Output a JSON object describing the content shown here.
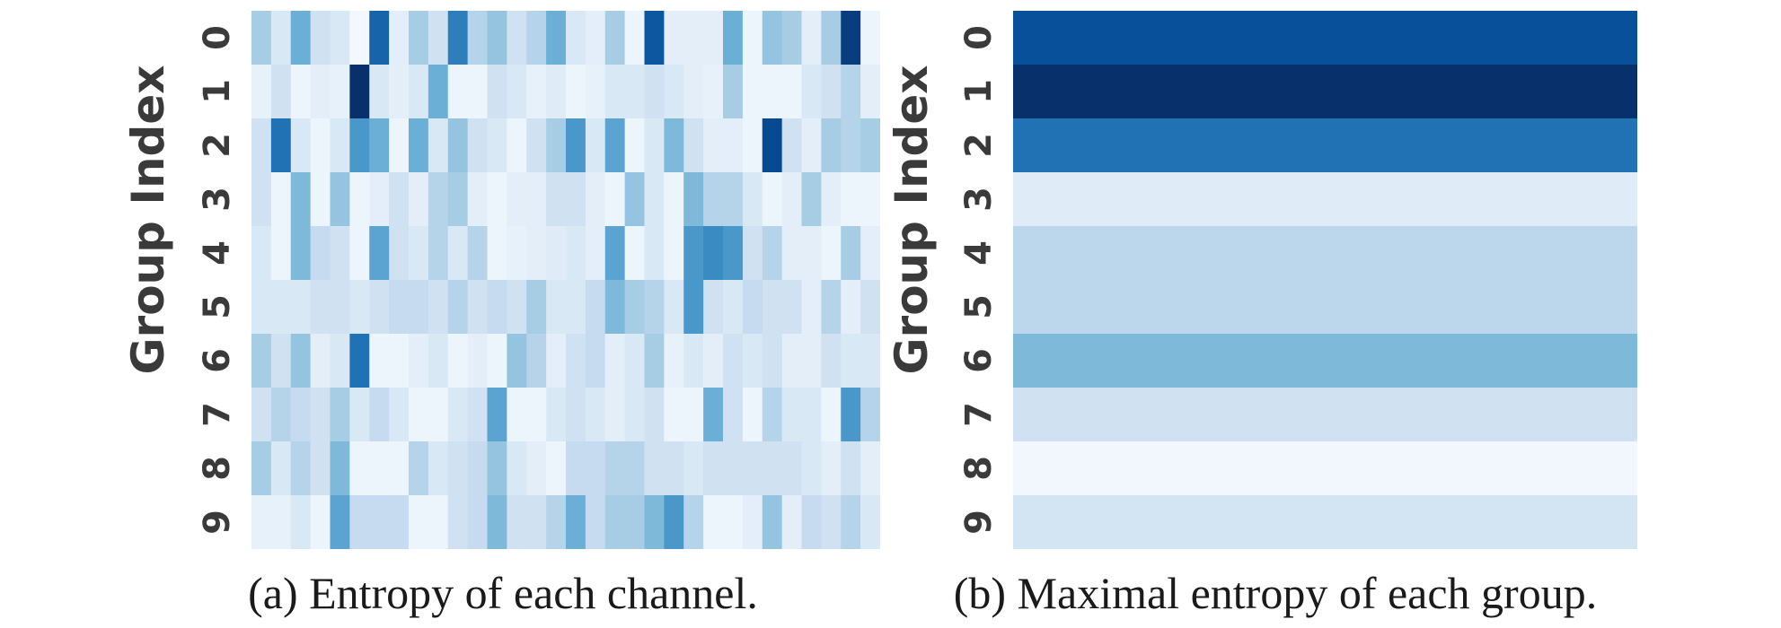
{
  "chart_data": [
    {
      "type": "heatmap",
      "ylabel": "Group Index",
      "rows": [
        "0",
        "1",
        "2",
        "3",
        "4",
        "5",
        "6",
        "7",
        "8",
        "9"
      ],
      "n_cols": 32,
      "colormap": "Blues",
      "values": [
        [
          0.35,
          0.15,
          0.5,
          0.2,
          0.15,
          0.02,
          0.8,
          0.1,
          0.35,
          0.2,
          0.7,
          0.3,
          0.4,
          0.2,
          0.3,
          0.5,
          0.15,
          0.1,
          0.35,
          0.05,
          0.85,
          0.1,
          0.1,
          0.1,
          0.5,
          0.05,
          0.4,
          0.35,
          0.1,
          0.35,
          0.95,
          0.05
        ],
        [
          0.08,
          0.2,
          0.05,
          0.1,
          0.08,
          1.0,
          0.15,
          0.1,
          0.15,
          0.5,
          0.05,
          0.05,
          0.2,
          0.15,
          0.08,
          0.12,
          0.05,
          0.08,
          0.15,
          0.15,
          0.2,
          0.15,
          0.1,
          0.08,
          0.35,
          0.05,
          0.05,
          0.05,
          0.15,
          0.2,
          0.3,
          0.1
        ],
        [
          0.2,
          0.75,
          0.15,
          0.05,
          0.15,
          0.6,
          0.5,
          0.05,
          0.5,
          0.15,
          0.4,
          0.2,
          0.15,
          0.05,
          0.2,
          0.35,
          0.6,
          0.15,
          0.55,
          0.05,
          0.15,
          0.45,
          0.2,
          0.1,
          0.1,
          0.05,
          0.9,
          0.2,
          0.1,
          0.35,
          0.3,
          0.35
        ],
        [
          0.2,
          0.05,
          0.45,
          0.05,
          0.4,
          0.05,
          0.1,
          0.2,
          0.1,
          0.3,
          0.35,
          0.1,
          0.05,
          0.1,
          0.1,
          0.2,
          0.2,
          0.1,
          0.05,
          0.4,
          0.15,
          0.05,
          0.45,
          0.3,
          0.3,
          0.15,
          0.05,
          0.1,
          0.35,
          0.1,
          0.05,
          0.05
        ],
        [
          0.15,
          0.05,
          0.45,
          0.25,
          0.2,
          0.05,
          0.55,
          0.2,
          0.15,
          0.3,
          0.15,
          0.3,
          0.05,
          0.08,
          0.1,
          0.12,
          0.15,
          0.1,
          0.55,
          0.05,
          0.15,
          0.05,
          0.6,
          0.65,
          0.6,
          0.2,
          0.3,
          0.1,
          0.1,
          0.05,
          0.35,
          0.1
        ],
        [
          0.15,
          0.15,
          0.15,
          0.2,
          0.2,
          0.15,
          0.2,
          0.25,
          0.25,
          0.2,
          0.3,
          0.2,
          0.25,
          0.2,
          0.35,
          0.15,
          0.15,
          0.25,
          0.45,
          0.35,
          0.3,
          0.15,
          0.6,
          0.2,
          0.15,
          0.25,
          0.2,
          0.2,
          0.1,
          0.3,
          0.1,
          0.2
        ],
        [
          0.35,
          0.2,
          0.4,
          0.1,
          0.15,
          0.75,
          0.05,
          0.05,
          0.1,
          0.15,
          0.05,
          0.1,
          0.05,
          0.4,
          0.3,
          0.1,
          0.2,
          0.25,
          0.1,
          0.15,
          0.35,
          0.08,
          0.15,
          0.1,
          0.2,
          0.15,
          0.2,
          0.1,
          0.1,
          0.2,
          0.15,
          0.15
        ],
        [
          0.2,
          0.3,
          0.25,
          0.2,
          0.35,
          0.15,
          0.25,
          0.15,
          0.05,
          0.05,
          0.15,
          0.2,
          0.55,
          0.05,
          0.05,
          0.15,
          0.2,
          0.15,
          0.1,
          0.15,
          0.2,
          0.05,
          0.05,
          0.5,
          0.2,
          0.05,
          0.3,
          0.15,
          0.15,
          0.05,
          0.6,
          0.3
        ],
        [
          0.35,
          0.15,
          0.3,
          0.2,
          0.45,
          0.05,
          0.05,
          0.05,
          0.3,
          0.15,
          0.2,
          0.25,
          0.4,
          0.15,
          0.1,
          0.05,
          0.25,
          0.25,
          0.3,
          0.3,
          0.2,
          0.2,
          0.15,
          0.2,
          0.2,
          0.2,
          0.2,
          0.2,
          0.15,
          0.1,
          0.2,
          0.1
        ],
        [
          0.08,
          0.08,
          0.15,
          0.05,
          0.55,
          0.25,
          0.25,
          0.25,
          0.05,
          0.05,
          0.2,
          0.25,
          0.45,
          0.2,
          0.2,
          0.3,
          0.5,
          0.25,
          0.35,
          0.35,
          0.45,
          0.6,
          0.3,
          0.05,
          0.05,
          0.1,
          0.4,
          0.1,
          0.25,
          0.2,
          0.3,
          0.15
        ]
      ],
      "caption": "(a) Entropy of each channel."
    },
    {
      "type": "heatmap",
      "ylabel": "Group Index",
      "rows": [
        "0",
        "1",
        "2",
        "3",
        "4",
        "5",
        "6",
        "7",
        "8",
        "9"
      ],
      "colormap": "Blues",
      "values": [
        0.88,
        1.0,
        0.75,
        0.12,
        0.28,
        0.28,
        0.45,
        0.2,
        0.03,
        0.18
      ],
      "caption": "(b) Maximal entropy of each group."
    }
  ]
}
